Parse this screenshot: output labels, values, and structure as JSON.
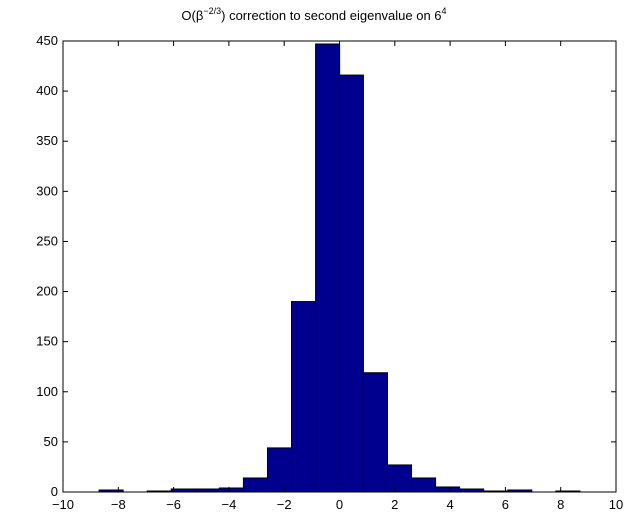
{
  "chart_data": {
    "type": "bar",
    "title_prefix": "O(β",
    "title_exp": "−2/3",
    "title_mid": ") correction to second eigenvalue on 6",
    "title_exp2": "4",
    "xlim": [
      -10,
      10
    ],
    "ylim": [
      0,
      450
    ],
    "xticks": [
      -10,
      -8,
      -6,
      -4,
      -2,
      0,
      2,
      4,
      6,
      8,
      10
    ],
    "xtick_labels": [
      "−10",
      "−8",
      "−6",
      "−4",
      "−2",
      "0",
      "2",
      "4",
      "6",
      "8",
      "10"
    ],
    "yticks": [
      0,
      50,
      100,
      150,
      200,
      250,
      300,
      350,
      400,
      450
    ],
    "ytick_labels": [
      "0",
      "50",
      "100",
      "150",
      "200",
      "250",
      "300",
      "350",
      "400",
      "450"
    ],
    "bin_width": 0.87,
    "bin_centers": [
      -8.26,
      -7.39,
      -6.52,
      -5.65,
      -4.78,
      -3.91,
      -3.04,
      -2.17,
      -1.3,
      -0.43,
      0.43,
      1.3,
      2.17,
      3.04,
      3.91,
      4.78,
      5.65,
      6.52,
      7.39,
      8.26
    ],
    "values": [
      2,
      0,
      1,
      3,
      3,
      4,
      14,
      44,
      190,
      447,
      416,
      119,
      27,
      14,
      5,
      3,
      1,
      2,
      0,
      1
    ],
    "grid": false,
    "bar_color": "#00008f",
    "edge_color": "#000000"
  }
}
